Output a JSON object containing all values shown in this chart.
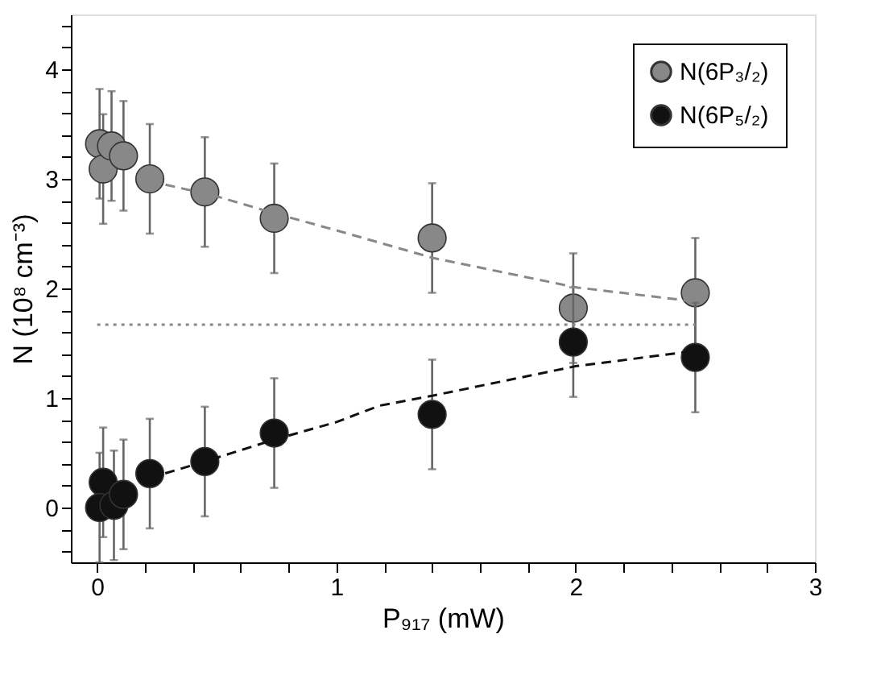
{
  "chart_data": {
    "type": "scatter",
    "xlabel": "P₉₁₇ (mW)",
    "ylabel": "N (10⁸ cm⁻³)",
    "xlim": [
      -0.11,
      3
    ],
    "ylim": [
      -0.5,
      4.5
    ],
    "xticks": [
      0,
      {
        "value": 0.2,
        "label": null
      },
      {
        "value": 0.4,
        "label": null
      },
      {
        "value": 0.6,
        "label": null
      },
      {
        "value": 0.8,
        "label": null
      },
      1,
      {
        "value": 1.2,
        "label": null
      },
      {
        "value": 1.4,
        "label": null
      },
      {
        "value": 1.6,
        "label": null
      },
      {
        "value": 1.8,
        "label": null
      },
      2,
      {
        "value": 2.2,
        "label": null
      },
      {
        "value": 2.4,
        "label": null
      },
      {
        "value": 2.6,
        "label": null
      },
      {
        "value": 2.8,
        "label": null
      },
      3
    ],
    "yticks": [
      {
        "value": -0.4,
        "label": null
      },
      {
        "value": -0.2,
        "label": null
      },
      0,
      {
        "value": 0.2,
        "label": null
      },
      {
        "value": 0.4,
        "label": null
      },
      {
        "value": 0.6,
        "label": null
      },
      {
        "value": 0.8,
        "label": null
      },
      1,
      {
        "value": 1.2,
        "label": null
      },
      {
        "value": 1.4,
        "label": null
      },
      {
        "value": 1.6,
        "label": null
      },
      {
        "value": 1.8,
        "label": null
      },
      2,
      {
        "value": 2.2,
        "label": null
      },
      {
        "value": 2.4,
        "label": null
      },
      {
        "value": 2.6,
        "label": null
      },
      {
        "value": 2.8,
        "label": null
      },
      3,
      {
        "value": 3.2,
        "label": null
      },
      {
        "value": 3.4,
        "label": null
      },
      {
        "value": 3.6,
        "label": null
      },
      {
        "value": 3.8,
        "label": null
      },
      4,
      {
        "value": 4.2,
        "label": null
      },
      {
        "value": 4.4,
        "label": null
      }
    ],
    "grid": false,
    "legend": "top right",
    "marker": "circle",
    "series": [
      {
        "name": "N(6P₃/₂)",
        "color": "#888888",
        "x": [
          0.01,
          0.025,
          0.06,
          0.11,
          0.22,
          0.45,
          0.74,
          1.4,
          1.99,
          2.5
        ],
        "values": [
          3.32,
          3.09,
          3.3,
          3.21,
          3.0,
          2.88,
          2.64,
          2.46,
          1.82,
          1.96
        ],
        "errors": [
          0.5,
          0.5,
          0.5,
          0.5,
          0.5,
          0.5,
          0.5,
          0.5,
          0.5,
          0.5
        ]
      },
      {
        "name": "N(6P₅/₂)",
        "color": "#111111",
        "x": [
          0.025,
          0.01,
          0.07,
          0.11,
          0.22,
          0.45,
          0.74,
          1.4,
          1.99,
          2.5
        ],
        "values": [
          0.23,
          0.0,
          0.02,
          0.12,
          0.31,
          0.42,
          0.68,
          0.85,
          1.51,
          1.37
        ],
        "errors": [
          0.5,
          0.5,
          0.5,
          0.5,
          0.5,
          0.5,
          0.5,
          0.5,
          0.5,
          0.5
        ]
      },
      {
        "type": "line",
        "marker": "none",
        "line_style": "dashed",
        "color": "#888888",
        "x": [
          0.22,
          0.5,
          0.75,
          1.0,
          1.4,
          2.0,
          2.5
        ],
        "values": [
          2.98,
          2.84,
          2.68,
          2.53,
          2.28,
          2.01,
          1.88
        ]
      },
      {
        "type": "line",
        "marker": "none",
        "line_style": "dashed",
        "color": "#111111",
        "x": [
          0.22,
          0.45,
          0.74,
          1.0,
          1.18,
          1.4,
          2.0,
          2.5
        ],
        "values": [
          0.27,
          0.42,
          0.62,
          0.78,
          0.93,
          1.02,
          1.29,
          1.43
        ]
      },
      {
        "type": "line",
        "marker": "none",
        "line_style": "dotted",
        "color": "#888888",
        "x": [
          0.0,
          2.5
        ],
        "values": [
          1.67,
          1.67
        ]
      }
    ]
  }
}
